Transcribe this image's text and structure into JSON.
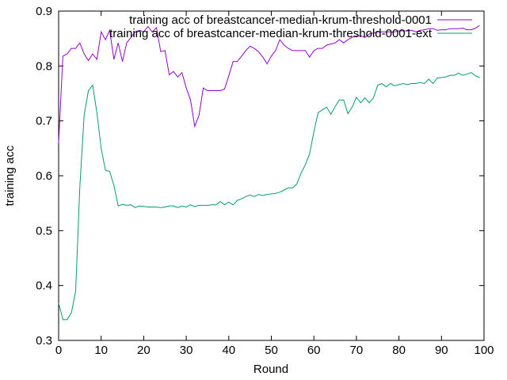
{
  "chart_data": {
    "type": "line",
    "xlabel": "Round",
    "ylabel": "training acc",
    "xlim": [
      0,
      100
    ],
    "ylim": [
      0.3,
      0.9
    ],
    "xticks": [
      0,
      10,
      20,
      30,
      40,
      50,
      60,
      70,
      80,
      90,
      100
    ],
    "yticks": [
      0.3,
      0.4,
      0.5,
      0.6,
      0.7,
      0.8,
      0.9
    ],
    "ytick_labels": [
      "0.3",
      "0.4",
      "0.5",
      "0.6",
      "0.7",
      "0.8",
      "0.9"
    ],
    "legend_position": "top-right",
    "grid": false,
    "series": [
      {
        "name": "training acc of breastcancer-median-krum-threshold-0001",
        "color": "#9400d3",
        "x": [
          0,
          1,
          2,
          3,
          4,
          5,
          6,
          7,
          8,
          9,
          10,
          11,
          12,
          13,
          14,
          15,
          16,
          17,
          18,
          19,
          20,
          21,
          22,
          23,
          24,
          25,
          26,
          27,
          28,
          29,
          30,
          31,
          32,
          33,
          34,
          35,
          36,
          37,
          38,
          39,
          40,
          41,
          42,
          43,
          44,
          45,
          46,
          47,
          48,
          49,
          50,
          51,
          52,
          53,
          54,
          55,
          56,
          57,
          58,
          59,
          60,
          61,
          62,
          63,
          64,
          65,
          66,
          67,
          68,
          69,
          70,
          71,
          72,
          73,
          74,
          75,
          76,
          77,
          78,
          79,
          80,
          81,
          82,
          83,
          84,
          85,
          86,
          87,
          88,
          89,
          90,
          91,
          92,
          93,
          94,
          95,
          96,
          97,
          98,
          99
        ],
        "values": [
          0.66,
          0.818,
          0.822,
          0.832,
          0.832,
          0.842,
          0.822,
          0.81,
          0.822,
          0.812,
          0.862,
          0.848,
          0.865,
          0.812,
          0.842,
          0.808,
          0.842,
          0.852,
          0.862,
          0.865,
          0.862,
          0.872,
          0.862,
          0.87,
          0.826,
          0.828,
          0.784,
          0.79,
          0.78,
          0.788,
          0.76,
          0.738,
          0.69,
          0.71,
          0.76,
          0.755,
          0.755,
          0.755,
          0.755,
          0.758,
          0.782,
          0.808,
          0.808,
          0.818,
          0.828,
          0.836,
          0.832,
          0.826,
          0.816,
          0.804,
          0.818,
          0.828,
          0.848,
          0.838,
          0.832,
          0.828,
          0.828,
          0.828,
          0.828,
          0.816,
          0.828,
          0.832,
          0.832,
          0.838,
          0.84,
          0.842,
          0.848,
          0.842,
          0.848,
          0.852,
          0.855,
          0.855,
          0.852,
          0.858,
          0.86,
          0.862,
          0.862,
          0.862,
          0.862,
          0.862,
          0.864,
          0.864,
          0.864,
          0.865,
          0.862,
          0.865,
          0.866,
          0.868,
          0.868,
          0.865,
          0.866,
          0.866,
          0.868,
          0.868,
          0.868,
          0.869,
          0.866,
          0.866,
          0.869,
          0.874
        ]
      },
      {
        "name": "training acc of breastcancer-median-krum-threshold-0001-ext",
        "color": "#009e73",
        "x": [
          0,
          1,
          2,
          3,
          4,
          5,
          6,
          7,
          8,
          9,
          10,
          11,
          12,
          13,
          14,
          15,
          16,
          17,
          18,
          19,
          20,
          21,
          22,
          23,
          24,
          25,
          26,
          27,
          28,
          29,
          30,
          31,
          32,
          33,
          34,
          35,
          36,
          37,
          38,
          39,
          40,
          41,
          42,
          43,
          44,
          45,
          46,
          47,
          48,
          49,
          50,
          51,
          52,
          53,
          54,
          55,
          56,
          57,
          58,
          59,
          60,
          61,
          62,
          63,
          64,
          65,
          66,
          67,
          68,
          69,
          70,
          71,
          72,
          73,
          74,
          75,
          76,
          77,
          78,
          79,
          80,
          81,
          82,
          83,
          84,
          85,
          86,
          87,
          88,
          89,
          90,
          91,
          92,
          93,
          94,
          95,
          96,
          97,
          98,
          99
        ],
        "values": [
          0.368,
          0.338,
          0.338,
          0.35,
          0.39,
          0.58,
          0.71,
          0.755,
          0.765,
          0.715,
          0.65,
          0.61,
          0.608,
          0.582,
          0.545,
          0.548,
          0.546,
          0.547,
          0.542,
          0.545,
          0.544,
          0.543,
          0.543,
          0.543,
          0.542,
          0.543,
          0.545,
          0.545,
          0.542,
          0.545,
          0.543,
          0.547,
          0.544,
          0.546,
          0.546,
          0.546,
          0.547,
          0.547,
          0.553,
          0.547,
          0.552,
          0.547,
          0.555,
          0.558,
          0.562,
          0.565,
          0.562,
          0.566,
          0.564,
          0.566,
          0.567,
          0.568,
          0.57,
          0.574,
          0.578,
          0.578,
          0.585,
          0.605,
          0.62,
          0.64,
          0.68,
          0.715,
          0.72,
          0.725,
          0.712,
          0.726,
          0.738,
          0.738,
          0.713,
          0.725,
          0.743,
          0.733,
          0.742,
          0.733,
          0.742,
          0.765,
          0.768,
          0.762,
          0.768,
          0.764,
          0.766,
          0.768,
          0.766,
          0.768,
          0.768,
          0.77,
          0.768,
          0.776,
          0.768,
          0.778,
          0.779,
          0.78,
          0.783,
          0.783,
          0.787,
          0.783,
          0.785,
          0.788,
          0.782,
          0.779
        ]
      }
    ]
  }
}
